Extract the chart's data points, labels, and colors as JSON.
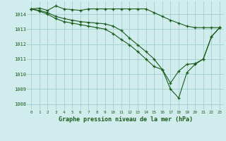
{
  "title": "Graphe pression niveau de la mer (hPa)",
  "bg_color": "#d0ecec",
  "grid_color": "#a8d4d4",
  "line_color": "#1a5c1a",
  "xlim": [
    -0.5,
    23.5
  ],
  "ylim": [
    1007.6,
    1014.85
  ],
  "yticks": [
    1008,
    1009,
    1010,
    1011,
    1012,
    1013,
    1014
  ],
  "xticks": [
    0,
    1,
    2,
    3,
    4,
    5,
    6,
    7,
    8,
    9,
    10,
    11,
    12,
    13,
    14,
    15,
    16,
    17,
    18,
    19,
    20,
    21,
    22,
    23
  ],
  "series1": [
    1014.35,
    1014.4,
    1014.25,
    1014.55,
    1014.35,
    1014.3,
    1014.25,
    1014.35,
    1014.35,
    1014.35,
    1014.35,
    1014.35,
    1014.35,
    1014.35,
    1014.35,
    1014.1,
    1013.85,
    1013.6,
    1013.4,
    1013.2,
    1013.1,
    1013.1,
    1013.1,
    1013.1
  ],
  "series2": [
    1014.35,
    1014.25,
    1014.1,
    1013.85,
    1013.7,
    1013.6,
    1013.5,
    1013.45,
    1013.4,
    1013.35,
    1013.2,
    1012.9,
    1012.4,
    1011.95,
    1011.5,
    1011.0,
    1010.3,
    1009.4,
    1010.2,
    1010.65,
    1010.7,
    1011.0,
    1012.5,
    1013.1
  ],
  "series3": [
    1014.35,
    1014.2,
    1014.0,
    1013.7,
    1013.5,
    1013.4,
    1013.3,
    1013.2,
    1013.1,
    1013.0,
    1012.7,
    1012.3,
    1011.95,
    1011.5,
    1011.0,
    1010.5,
    1010.3,
    1009.0,
    1008.4,
    1010.1,
    1010.65,
    1011.0,
    1012.5,
    1013.1
  ]
}
